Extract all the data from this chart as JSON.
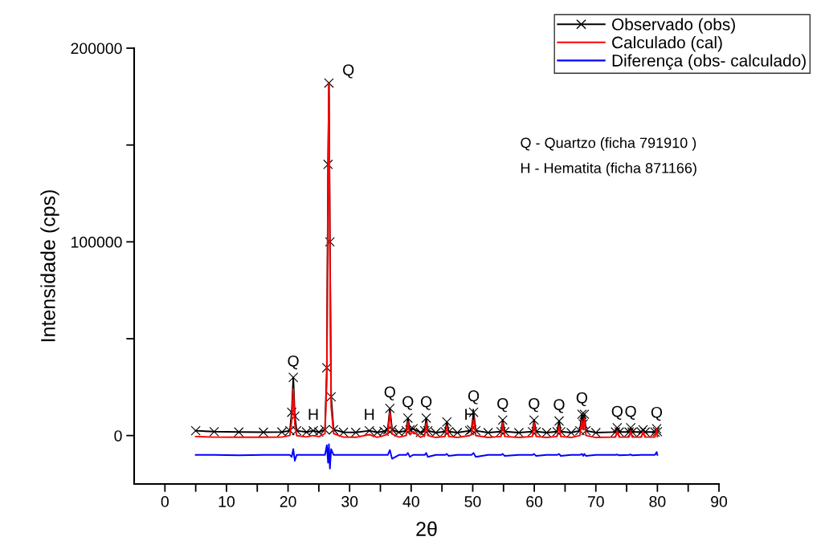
{
  "chart_data": {
    "type": "line",
    "xlabel": "2θ",
    "ylabel": "Intensidade (cps)",
    "x": [
      5,
      8,
      12,
      16,
      19,
      20.3,
      20.6,
      20.85,
      21.1,
      21.4,
      23,
      24.1,
      25,
      26.0,
      26.3,
      26.5,
      26.64,
      26.8,
      27.0,
      27.4,
      29,
      31,
      33.2,
      34.5,
      35.6,
      36.2,
      36.54,
      36.9,
      38,
      39.2,
      39.47,
      39.8,
      40.3,
      41.5,
      42.2,
      42.45,
      42.7,
      44,
      45.5,
      45.8,
      46.1,
      47.5,
      49.5,
      49.8,
      50.14,
      50.5,
      52.5,
      54.6,
      54.87,
      55.2,
      57.5,
      59.7,
      59.96,
      60.3,
      62,
      63.7,
      64.03,
      64.3,
      66,
      67.4,
      67.74,
      67.95,
      68.14,
      68.4,
      70,
      73.2,
      73.47,
      73.8,
      75.4,
      75.66,
      75.9,
      77.4,
      77.67,
      78,
      79.6,
      79.88,
      80
    ],
    "series": [
      {
        "name": "Observado (obs)",
        "color": "#000000",
        "marker": "cross",
        "values": [
          2500,
          2000,
          1800,
          1700,
          1800,
          2500,
          12000,
          30000,
          10000,
          2500,
          1800,
          2500,
          1800,
          3000,
          35000,
          140000,
          182000,
          100000,
          20000,
          3000,
          1700,
          1600,
          2500,
          1600,
          2200,
          3000,
          14000,
          3000,
          1700,
          2500,
          9000,
          3000,
          3500,
          1600,
          2500,
          9000,
          2500,
          1500,
          2000,
          7000,
          2000,
          1500,
          2500,
          3000,
          12000,
          2500,
          1500,
          2000,
          8000,
          2000,
          1500,
          2000,
          8000,
          2000,
          1500,
          2000,
          7500,
          2000,
          1500,
          2500,
          11000,
          6000,
          11000,
          2500,
          1500,
          1800,
          4000,
          1800,
          1800,
          4000,
          1800,
          1800,
          3000,
          1800,
          1800,
          3500,
          2000
        ]
      },
      {
        "name": "Calculado (cal)",
        "color": "#ff0000",
        "values": [
          -500,
          -800,
          -900,
          -900,
          -800,
          0,
          8000,
          24000,
          6000,
          0,
          -700,
          0,
          -600,
          1000,
          30000,
          135000,
          182000,
          95000,
          15000,
          1000,
          -800,
          -900,
          500,
          -900,
          0,
          800,
          12000,
          800,
          -800,
          0,
          7000,
          500,
          2000,
          -900,
          0,
          6500,
          0,
          -1000,
          -500,
          5000,
          -500,
          -1000,
          0,
          500,
          9500,
          0,
          -1000,
          -500,
          6500,
          -500,
          -1000,
          -500,
          6500,
          -500,
          -1000,
          -500,
          5000,
          -500,
          -1000,
          0,
          8000,
          3000,
          9000,
          0,
          -1000,
          -800,
          2500,
          -800,
          -800,
          2500,
          -800,
          -800,
          2000,
          -800,
          -800,
          3500,
          -500
        ]
      },
      {
        "name": "Diferença (obs- calculado)",
        "color": "#0000ff",
        "values": [
          -10000,
          -10000,
          -10200,
          -10000,
          -10000,
          -10000,
          -11000,
          -7000,
          -13000,
          -10000,
          -10000,
          -10000,
          -10000,
          -10000,
          -5000,
          -14000,
          -4500,
          -17000,
          -7000,
          -10000,
          -10000,
          -10000,
          -10000,
          -10000,
          -10000,
          -10000,
          -7500,
          -12000,
          -10000,
          -10000,
          -9000,
          -11000,
          -10000,
          -10000,
          -10000,
          -9000,
          -11000,
          -10000,
          -10000,
          -9500,
          -10500,
          -10000,
          -10000,
          -10000,
          -9000,
          -11000,
          -10000,
          -10000,
          -9500,
          -10500,
          -10000,
          -10000,
          -9500,
          -10500,
          -10000,
          -10000,
          -9500,
          -10500,
          -10000,
          -10000,
          -9500,
          -10500,
          -9500,
          -10500,
          -10000,
          -10000,
          -9800,
          -10200,
          -10000,
          -9800,
          -10200,
          -10000,
          -10000,
          -10000,
          -10000,
          -8500,
          -10000
        ]
      }
    ],
    "xlim": [
      -5,
      90
    ],
    "xticks": [
      0,
      {
        "value": 5,
        "label": null
      },
      10,
      {
        "value": 15,
        "label": null
      },
      20,
      {
        "value": 25,
        "label": null
      },
      30,
      {
        "value": 35,
        "label": null
      },
      40,
      {
        "value": 45,
        "label": null
      },
      50,
      {
        "value": 55,
        "label": null
      },
      60,
      {
        "value": 65,
        "label": null
      },
      70,
      {
        "value": 75,
        "label": null
      },
      80,
      {
        "value": 85,
        "label": null
      },
      90
    ],
    "ylim": [
      -25000,
      200000
    ],
    "yticks": [
      0,
      {
        "value": 50000,
        "label": null
      },
      100000,
      {
        "value": 150000,
        "label": null
      },
      200000
    ],
    "grid": false,
    "legend": "top right",
    "annotations": [
      {
        "text": "Q",
        "x": 20.85,
        "y": 30000
      },
      {
        "text": "H",
        "x": 24.1,
        "y": 2500
      },
      {
        "text": "Q",
        "x": 26.64,
        "y": 182000
      },
      {
        "text": "H",
        "x": 33.2,
        "y": 2500
      },
      {
        "text": "Q",
        "x": 36.54,
        "y": 14000
      },
      {
        "text": "Q",
        "x": 39.47,
        "y": 9000
      },
      {
        "text": "Q",
        "x": 42.45,
        "y": 9000
      },
      {
        "text": "H",
        "x": 49.5,
        "y": 2500
      },
      {
        "text": "Q",
        "x": 50.14,
        "y": 12000
      },
      {
        "text": "Q",
        "x": 54.87,
        "y": 8000
      },
      {
        "text": "Q",
        "x": 59.96,
        "y": 8000
      },
      {
        "text": "Q",
        "x": 64.03,
        "y": 7500
      },
      {
        "text": "Q",
        "x": 67.74,
        "y": 11000
      },
      {
        "text": "Q",
        "x": 73.47,
        "y": 4000
      },
      {
        "text": "Q",
        "x": 75.66,
        "y": 4000
      },
      {
        "text": "Q",
        "x": 79.88,
        "y": 3500
      },
      "Q - Quartzo (ficha 791910 )",
      "H - Hematita (ficha 871166)"
    ]
  }
}
